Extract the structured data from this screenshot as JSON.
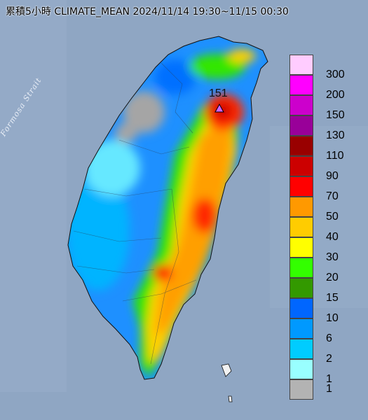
{
  "title": "累積5小時 CLIMATE_MEAN 2024/11/14 19:30~11/15 00:30",
  "strait_label": "Formosa Strait",
  "max_marker": {
    "value": "151",
    "color": "#cc66ff"
  },
  "legend": [
    {
      "label": "300",
      "color": "#ffccff"
    },
    {
      "label": "200",
      "color": "#ff00ff"
    },
    {
      "label": "150",
      "color": "#cc00cc"
    },
    {
      "label": "130",
      "color": "#990099"
    },
    {
      "label": "110",
      "color": "#990000"
    },
    {
      "label": "90",
      "color": "#cc0000"
    },
    {
      "label": "70",
      "color": "#ff0000"
    },
    {
      "label": "50",
      "color": "#ff9900"
    },
    {
      "label": "40",
      "color": "#ffcc00"
    },
    {
      "label": "30",
      "color": "#ffff00"
    },
    {
      "label": "20",
      "color": "#33ff00"
    },
    {
      "label": "15",
      "color": "#339900"
    },
    {
      "label": "10",
      "color": "#0066ff"
    },
    {
      "label": "6",
      "color": "#0099ff"
    },
    {
      "label": "2",
      "color": "#00ccff"
    },
    {
      "label": "1",
      "color": "#99ffff"
    },
    {
      "label": "1",
      "color": "#b3b3b3"
    }
  ]
}
